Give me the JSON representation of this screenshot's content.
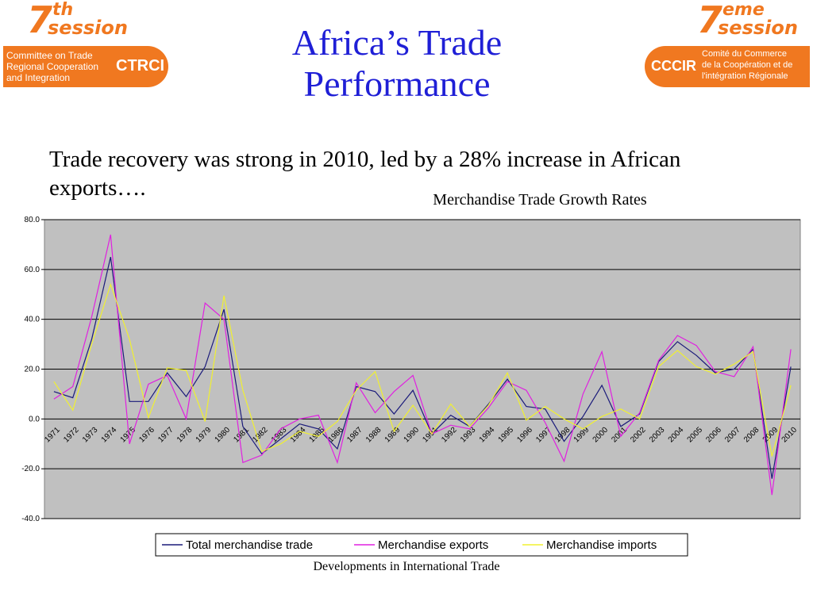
{
  "header": {
    "title_line1": "Africa’s Trade",
    "title_line2": "Performance"
  },
  "logos": {
    "left": {
      "session_num": "7",
      "session_sup": "th",
      "session_word": "session",
      "line1": "Committee on Trade",
      "line2": "Regional Cooperation",
      "line3": "and Integration",
      "acronym": "CTRCI"
    },
    "right": {
      "session_num": "7",
      "session_sup": "eme",
      "session_word": "session",
      "line1": "Comité du Commerce",
      "line2": "de la Coopération et de",
      "line3": "l'intégration Régionale",
      "acronym": "CCCIR"
    },
    "accent_color": "#f07820"
  },
  "intro_text": "Trade recovery was strong in 2010, led by a 28% increase in African exports….",
  "source_note": "Developments in International Trade",
  "chart_data": {
    "type": "line",
    "title": "Merchandise Trade Growth Rates",
    "xlabel": "",
    "ylabel": "",
    "ylim": [
      -40,
      80
    ],
    "y_ticks": [
      "80.0",
      "60.0",
      "40.0",
      "20.0",
      "0.0",
      "-20.0",
      "-40.0"
    ],
    "grid": true,
    "legend_position": "bottom",
    "background_color": "#c0c0c0",
    "categories": [
      "1971",
      "1972",
      "1973",
      "1974",
      "1975",
      "1976",
      "1977",
      "1978",
      "1979",
      "1980",
      "1981",
      "1982",
      "1983",
      "1984",
      "1985",
      "1986",
      "1987",
      "1988",
      "1989",
      "1990",
      "1991",
      "1992",
      "1993",
      "1994",
      "1995",
      "1996",
      "1997",
      "1998",
      "1999",
      "2000",
      "2001",
      "2002",
      "2003",
      "2004",
      "2005",
      "2006",
      "2007",
      "2008",
      "2009",
      "2010"
    ],
    "series": [
      {
        "name": "Total merchandise trade",
        "color": "#1a1a7a",
        "values": [
          11,
          8.5,
          32,
          65,
          7,
          7,
          18.5,
          9,
          21,
          44,
          -3,
          -14,
          -8,
          -2,
          -4,
          -12,
          13,
          11,
          2,
          11.5,
          -6,
          1.5,
          -3,
          6,
          16,
          5,
          4,
          -9,
          1,
          13.5,
          -3,
          2,
          23,
          31,
          25.5,
          18.5,
          20,
          28,
          -24,
          21
        ]
      },
      {
        "name": "Merchandise exports",
        "color": "#e020e0",
        "values": [
          8,
          13,
          41,
          74,
          -10,
          14,
          17.5,
          0,
          46.5,
          40,
          -17.5,
          -14.5,
          -4,
          0,
          1.5,
          -17.5,
          14.5,
          2.5,
          11,
          17.5,
          -6,
          -2.5,
          -4,
          4.5,
          15,
          11.5,
          -1.5,
          -17,
          10,
          27,
          -7,
          2.5,
          23.5,
          33.5,
          29.5,
          19,
          17,
          29,
          -30.5,
          28
        ]
      },
      {
        "name": "Merchandise imports",
        "color": "#f0f030",
        "values": [
          15,
          3.5,
          30,
          54,
          32,
          0.5,
          20.5,
          19.5,
          -1,
          49.5,
          11.5,
          -13,
          -10,
          -5,
          -7,
          -1,
          11.5,
          19,
          -5,
          5.5,
          -6,
          6,
          -3,
          5.5,
          18.5,
          -0.5,
          5,
          0,
          -4,
          1,
          4,
          0,
          21,
          27.5,
          21,
          18,
          22,
          27,
          -15,
          13.5
        ]
      }
    ]
  }
}
